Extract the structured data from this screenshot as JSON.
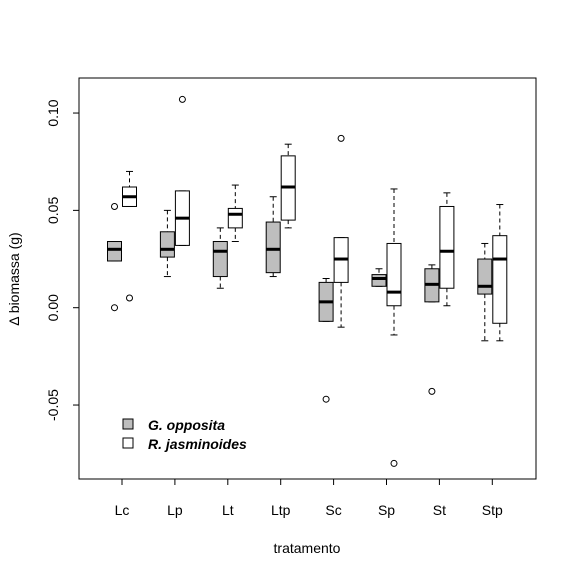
{
  "chart_data": {
    "type": "box",
    "title": "",
    "xlabel": "tratamento",
    "ylabel": "Δ biomassa (g)",
    "ylim": [
      -0.088,
      0.118
    ],
    "y_ticks": [
      -0.05,
      0.0,
      0.05,
      0.1
    ],
    "y_tick_labels": [
      "-0.05",
      "0.00",
      "0.05",
      "0.10"
    ],
    "categories": [
      "Lc",
      "Lp",
      "Lt",
      "Ltp",
      "Sc",
      "Sp",
      "St",
      "Stp"
    ],
    "legend": {
      "position": "bottom-left"
    },
    "series": [
      {
        "name": "G. opposita",
        "color": "#bebebe",
        "boxes": [
          {
            "min": 0.024,
            "q1": 0.024,
            "median": 0.03,
            "q3": 0.034,
            "max": 0.034,
            "outliers": [
              0.052,
              0.0
            ]
          },
          {
            "min": 0.016,
            "q1": 0.026,
            "median": 0.03,
            "q3": 0.039,
            "max": 0.05,
            "outliers": []
          },
          {
            "min": 0.01,
            "q1": 0.016,
            "median": 0.029,
            "q3": 0.034,
            "max": 0.041,
            "outliers": []
          },
          {
            "min": 0.016,
            "q1": 0.018,
            "median": 0.03,
            "q3": 0.044,
            "max": 0.057,
            "outliers": []
          },
          {
            "min": -0.007,
            "q1": -0.007,
            "median": 0.003,
            "q3": 0.013,
            "max": 0.015,
            "outliers": [
              -0.047
            ]
          },
          {
            "min": 0.011,
            "q1": 0.011,
            "median": 0.015,
            "q3": 0.017,
            "max": 0.02,
            "outliers": []
          },
          {
            "min": 0.003,
            "q1": 0.003,
            "median": 0.012,
            "q3": 0.02,
            "max": 0.022,
            "outliers": [
              -0.043
            ]
          },
          {
            "min": -0.017,
            "q1": 0.007,
            "median": 0.011,
            "q3": 0.025,
            "max": 0.033,
            "outliers": []
          }
        ]
      },
      {
        "name": "R. jasminoides",
        "color": "#ffffff",
        "boxes": [
          {
            "min": 0.052,
            "q1": 0.052,
            "median": 0.057,
            "q3": 0.062,
            "max": 0.07,
            "outliers": [
              0.005
            ]
          },
          {
            "min": 0.032,
            "q1": 0.032,
            "median": 0.046,
            "q3": 0.06,
            "max": 0.06,
            "outliers": [
              0.107
            ]
          },
          {
            "min": 0.034,
            "q1": 0.041,
            "median": 0.048,
            "q3": 0.051,
            "max": 0.063,
            "outliers": []
          },
          {
            "min": 0.041,
            "q1": 0.045,
            "median": 0.062,
            "q3": 0.078,
            "max": 0.084,
            "outliers": []
          },
          {
            "min": -0.01,
            "q1": 0.013,
            "median": 0.025,
            "q3": 0.036,
            "max": 0.036,
            "outliers": [
              0.087
            ]
          },
          {
            "min": -0.014,
            "q1": 0.001,
            "median": 0.008,
            "q3": 0.033,
            "max": 0.061,
            "outliers": [
              -0.08
            ]
          },
          {
            "min": 0.001,
            "q1": 0.01,
            "median": 0.029,
            "q3": 0.052,
            "max": 0.059,
            "outliers": []
          },
          {
            "min": -0.017,
            "q1": -0.008,
            "median": 0.025,
            "q3": 0.037,
            "max": 0.053,
            "outliers": []
          }
        ]
      }
    ]
  }
}
